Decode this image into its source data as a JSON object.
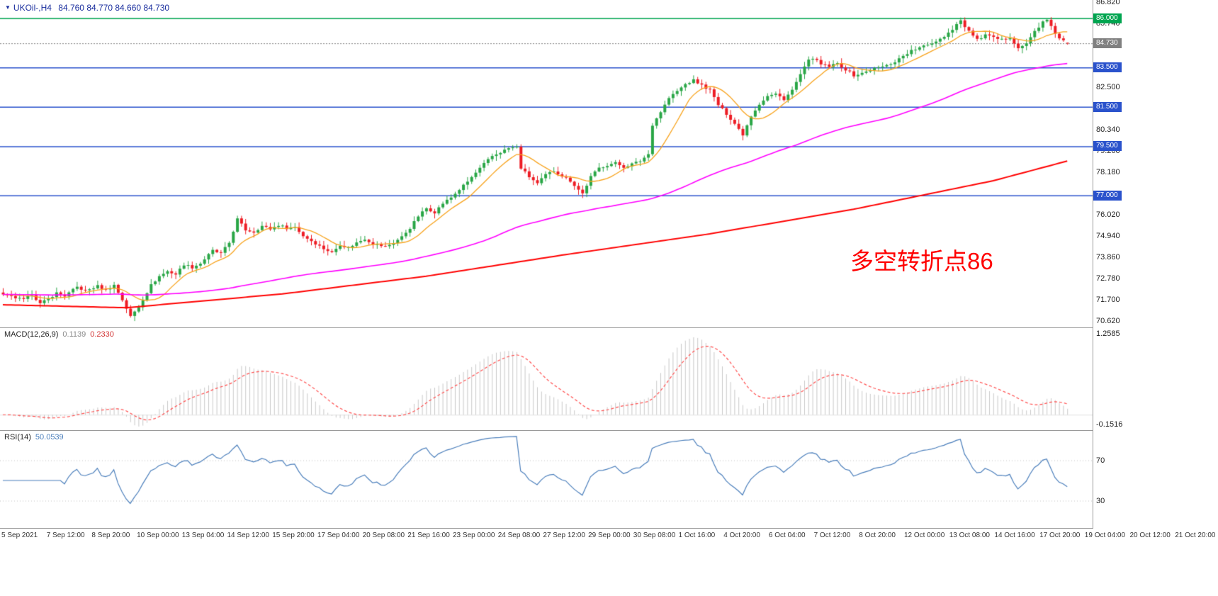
{
  "header": {
    "marker": "▼",
    "symbol_timeframe": "UKOil-,H4",
    "ohlc": "84.760 84.770 84.660 84.730"
  },
  "annotation": {
    "text": "多空转折点86",
    "color": "#ff0000"
  },
  "price_scale": {
    "labels": [
      {
        "text": "86.820",
        "price": 86.82
      },
      {
        "text": "85.740",
        "price": 85.74
      },
      {
        "text": "82.500",
        "price": 82.5
      },
      {
        "text": "80.340",
        "price": 80.34
      },
      {
        "text": "79.260",
        "price": 79.26
      },
      {
        "text": "78.180",
        "price": 78.18
      },
      {
        "text": "76.020",
        "price": 76.02
      },
      {
        "text": "74.940",
        "price": 74.94
      },
      {
        "text": "73.860",
        "price": 73.86
      },
      {
        "text": "72.780",
        "price": 72.78
      },
      {
        "text": "71.700",
        "price": 71.7
      },
      {
        "text": "70.620",
        "price": 70.62
      }
    ],
    "tags": [
      {
        "text": "86.000",
        "price": 86.0,
        "bg": "#00a550"
      },
      {
        "text": "84.730",
        "price": 84.73,
        "bg": "#808080"
      },
      {
        "text": "83.500",
        "price": 83.5,
        "bg": "#2a52cc"
      },
      {
        "text": "81.500",
        "price": 81.5,
        "bg": "#2a52cc"
      },
      {
        "text": "79.500",
        "price": 79.5,
        "bg": "#2a52cc"
      },
      {
        "text": "77.000",
        "price": 77.0,
        "bg": "#2a52cc"
      }
    ]
  },
  "time_axis": {
    "labels": [
      "5 Sep 2021",
      "7 Sep 12:00",
      "8 Sep 20:00",
      "10 Sep 00:00",
      "13 Sep 04:00",
      "14 Sep 12:00",
      "15 Sep 20:00",
      "17 Sep 04:00",
      "20 Sep 08:00",
      "21 Sep 16:00",
      "23 Sep 00:00",
      "24 Sep 08:00",
      "27 Sep 12:00",
      "29 Sep 00:00",
      "30 Sep 08:00",
      "1 Oct 16:00",
      "4 Oct 20:00",
      "6 Oct 04:00",
      "7 Oct 12:00",
      "8 Oct 20:00",
      "12 Oct 00:00",
      "13 Oct 08:00",
      "14 Oct 16:00",
      "17 Oct 20:00",
      "19 Oct 04:00",
      "20 Oct 12:00",
      "21 Oct 20:00"
    ]
  },
  "macd_panel": {
    "label": "MACD(12,26,9)",
    "value_main": "0.1139",
    "value_signal": "0.2330",
    "ylim": [
      -0.1516,
      1.2585
    ],
    "axis_labels": [
      {
        "text": "1.2585",
        "value": 1.2585
      },
      {
        "text": "-0.1516",
        "value": -0.1516
      }
    ]
  },
  "rsi_panel": {
    "label": "RSI(14)",
    "value": "50.0539",
    "ylim": [
      10,
      95
    ],
    "levels": [
      {
        "text": "70",
        "value": 70
      },
      {
        "text": "30",
        "value": 30
      }
    ]
  },
  "chart_data": {
    "type": "candlestick",
    "symbol": "UKOil-",
    "timeframe": "H4",
    "title": "UKOil-,H4 84.760 84.770 84.660 84.730",
    "ylim": [
      70.3,
      86.93
    ],
    "bar_count": 260,
    "last_bar_ohlc": [
      84.76,
      84.77,
      84.66,
      84.73
    ],
    "candle_colors": {
      "up": "#29a646",
      "down": "#ed1c24"
    },
    "close_waypoints": [
      [
        0,
        71.95
      ],
      [
        3,
        71.8
      ],
      [
        5,
        71.7
      ],
      [
        7,
        72.0
      ],
      [
        9,
        71.5
      ],
      [
        11,
        71.75
      ],
      [
        13,
        72.05
      ],
      [
        15,
        71.9
      ],
      [
        18,
        72.35
      ],
      [
        20,
        72.15
      ],
      [
        23,
        72.4
      ],
      [
        25,
        72.2
      ],
      [
        27,
        72.45
      ],
      [
        29,
        71.7
      ],
      [
        31,
        70.85
      ],
      [
        33,
        71.35
      ],
      [
        36,
        72.45
      ],
      [
        38,
        72.9
      ],
      [
        40,
        73.15
      ],
      [
        42,
        73.0
      ],
      [
        44,
        73.5
      ],
      [
        46,
        73.35
      ],
      [
        48,
        73.55
      ],
      [
        51,
        74.2
      ],
      [
        53,
        74.05
      ],
      [
        55,
        74.6
      ],
      [
        57,
        75.8
      ],
      [
        59,
        75.25
      ],
      [
        61,
        75.15
      ],
      [
        63,
        75.45
      ],
      [
        65,
        75.3
      ],
      [
        67,
        75.5
      ],
      [
        69,
        75.35
      ],
      [
        71,
        75.4
      ],
      [
        73,
        74.95
      ],
      [
        75,
        74.7
      ],
      [
        78,
        74.3
      ],
      [
        80,
        74.1
      ],
      [
        82,
        74.5
      ],
      [
        84,
        74.35
      ],
      [
        86,
        74.6
      ],
      [
        88,
        74.8
      ],
      [
        90,
        74.55
      ],
      [
        93,
        74.4
      ],
      [
        95,
        74.6
      ],
      [
        97,
        74.9
      ],
      [
        99,
        75.35
      ],
      [
        101,
        75.95
      ],
      [
        103,
        76.35
      ],
      [
        105,
        76.15
      ],
      [
        107,
        76.6
      ],
      [
        109,
        76.9
      ],
      [
        111,
        77.3
      ],
      [
        113,
        77.7
      ],
      [
        115,
        78.15
      ],
      [
        117,
        78.6
      ],
      [
        119,
        79.0
      ],
      [
        121,
        79.2
      ],
      [
        123,
        79.4
      ],
      [
        125,
        79.45
      ],
      [
        126,
        78.4
      ],
      [
        128,
        77.95
      ],
      [
        130,
        77.6
      ],
      [
        132,
        78.05
      ],
      [
        134,
        78.25
      ],
      [
        136,
        78.0
      ],
      [
        138,
        77.75
      ],
      [
        140,
        77.3
      ],
      [
        141,
        77.1
      ],
      [
        143,
        77.95
      ],
      [
        145,
        78.4
      ],
      [
        147,
        78.55
      ],
      [
        149,
        78.65
      ],
      [
        151,
        78.45
      ],
      [
        153,
        78.6
      ],
      [
        155,
        78.75
      ],
      [
        157,
        79.1
      ],
      [
        158,
        80.6
      ],
      [
        160,
        81.25
      ],
      [
        162,
        81.95
      ],
      [
        164,
        82.3
      ],
      [
        166,
        82.65
      ],
      [
        168,
        82.85
      ],
      [
        170,
        82.6
      ],
      [
        172,
        82.35
      ],
      [
        174,
        81.6
      ],
      [
        176,
        81.15
      ],
      [
        178,
        80.65
      ],
      [
        180,
        80.1
      ],
      [
        182,
        81.05
      ],
      [
        184,
        81.65
      ],
      [
        186,
        82.05
      ],
      [
        188,
        82.15
      ],
      [
        190,
        81.9
      ],
      [
        192,
        82.35
      ],
      [
        194,
        83.15
      ],
      [
        196,
        83.85
      ],
      [
        197,
        84.0
      ],
      [
        199,
        83.65
      ],
      [
        201,
        83.55
      ],
      [
        203,
        83.7
      ],
      [
        205,
        83.4
      ],
      [
        207,
        83.1
      ],
      [
        209,
        83.2
      ],
      [
        211,
        83.4
      ],
      [
        213,
        83.5
      ],
      [
        215,
        83.6
      ],
      [
        217,
        83.8
      ],
      [
        219,
        84.1
      ],
      [
        221,
        84.35
      ],
      [
        223,
        84.5
      ],
      [
        225,
        84.65
      ],
      [
        227,
        84.85
      ],
      [
        229,
        85.1
      ],
      [
        231,
        85.45
      ],
      [
        233,
        85.95
      ],
      [
        234,
        85.55
      ],
      [
        236,
        85.15
      ],
      [
        237,
        84.9
      ],
      [
        239,
        85.15
      ],
      [
        241,
        85.0
      ],
      [
        243,
        84.9
      ],
      [
        245,
        85.05
      ],
      [
        247,
        84.5
      ],
      [
        249,
        84.7
      ],
      [
        251,
        85.35
      ],
      [
        253,
        85.8
      ],
      [
        254,
        85.9
      ],
      [
        255,
        85.55
      ],
      [
        256,
        85.25
      ],
      [
        257,
        85.0
      ],
      [
        258,
        84.85
      ],
      [
        259,
        84.73
      ]
    ],
    "hlines": [
      {
        "price": 86.0,
        "color": "#00a550",
        "label": "86.000"
      },
      {
        "price": 83.5,
        "color": "#2a52cc",
        "label": "83.500"
      },
      {
        "price": 81.5,
        "color": "#2a52cc",
        "label": "81.500"
      },
      {
        "price": 79.5,
        "color": "#2a52cc",
        "label": "79.500"
      },
      {
        "price": 77.0,
        "color": "#2a52cc",
        "label": "77.000"
      }
    ],
    "bid_line": {
      "price": 84.73,
      "label": "84.730",
      "color": "#808080"
    },
    "moving_averages": [
      {
        "name": "ma-fast",
        "type": "sma",
        "period": 10,
        "color": "#f7a21b",
        "width": 1.3
      },
      {
        "name": "ma-medium",
        "type": "sma",
        "period": 90,
        "color": "#ff00ff",
        "width": 1.6
      },
      {
        "name": "ma-slow",
        "type": "waypoints",
        "color": "#ff0000",
        "width": 2,
        "points": [
          [
            0,
            71.45
          ],
          [
            30,
            71.3
          ],
          [
            68,
            72.0
          ],
          [
            103,
            72.9
          ],
          [
            137,
            74.0
          ],
          [
            172,
            75.05
          ],
          [
            207,
            76.3
          ],
          [
            241,
            77.75
          ],
          [
            259,
            78.75
          ]
        ]
      }
    ],
    "indicators": {
      "macd": {
        "fast": 12,
        "slow": 26,
        "signal": 9,
        "histogram_color": "#c8c8c8",
        "signal_color": "#ff4d4d",
        "current_main": 0.1139,
        "current_signal": 0.233
      },
      "rsi": {
        "period": 14,
        "color": "#4a7ebb",
        "current": 50.0539,
        "level_color": "#c0c0c0"
      }
    }
  }
}
